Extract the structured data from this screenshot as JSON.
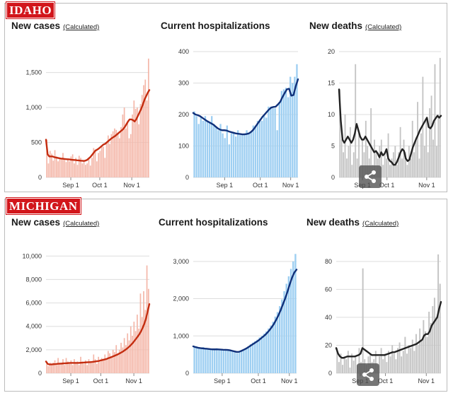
{
  "states": [
    {
      "name": "IDAHO",
      "charts": [
        {
          "title": "New cases",
          "note": "(Calculated)"
        },
        {
          "title": "Current hospitalizations",
          "note": ""
        },
        {
          "title": "New deaths",
          "note": "(Calculated)"
        }
      ]
    },
    {
      "name": "MICHIGAN",
      "charts": [
        {
          "title": "New cases",
          "note": "(Calculated)"
        },
        {
          "title": "Current hospitalizations",
          "note": ""
        },
        {
          "title": "New deaths",
          "note": "(Calculated)"
        }
      ]
    }
  ],
  "chart_data": [
    {
      "id": "idaho-cases",
      "type": "bar",
      "title": "New cases",
      "state": "Idaho",
      "bar_color": "#f4b8aa",
      "line_color": "#c42d10",
      "yticks": [
        0,
        500,
        1000,
        1500
      ],
      "ytick_labels": [
        "0",
        "500",
        "1,000",
        "1,500"
      ],
      "ylim": [
        0,
        1800
      ],
      "xticks": [
        "Sep 1",
        "Oct 1",
        "Nov 1"
      ],
      "bars": [
        540,
        200,
        380,
        340,
        240,
        390,
        300,
        230,
        260,
        280,
        350,
        260,
        220,
        270,
        230,
        300,
        330,
        200,
        280,
        180,
        310,
        280,
        200,
        240,
        180,
        200,
        260,
        170,
        280,
        420,
        400,
        230,
        350,
        380,
        450,
        440,
        280,
        500,
        600,
        480,
        620,
        660,
        700,
        680,
        640,
        560,
        720,
        900,
        1000,
        700,
        780,
        560,
        620,
        900,
        1100,
        980,
        1000,
        760,
        1050,
        1180,
        1320,
        1400,
        1100,
        1700
      ],
      "avg": [
        540,
        330,
        300,
        300,
        300,
        290,
        285,
        280,
        275,
        270,
        268,
        265,
        262,
        260,
        258,
        255,
        252,
        250,
        248,
        245,
        243,
        240,
        238,
        236,
        240,
        250,
        270,
        290,
        320,
        350,
        380,
        395,
        410,
        430,
        450,
        470,
        480,
        500,
        520,
        540,
        560,
        575,
        590,
        610,
        630,
        650,
        670,
        690,
        720,
        760,
        800,
        830,
        830,
        820,
        800,
        830,
        880,
        930,
        980,
        1040,
        1110,
        1160,
        1210,
        1250
      ]
    },
    {
      "id": "idaho-hosp",
      "type": "bar",
      "title": "Current hospitalizations",
      "state": "Idaho",
      "bar_color": "#9ecff2",
      "line_color": "#10307a",
      "yticks": [
        0,
        100,
        200,
        300,
        400
      ],
      "ytick_labels": [
        "0",
        "100",
        "200",
        "300",
        "400"
      ],
      "ylim": [
        0,
        400
      ],
      "xticks": [
        "Sep 1",
        "Oct 1",
        "Nov 1"
      ],
      "bars": [
        210,
        195,
        170,
        195,
        180,
        195,
        180,
        175,
        195,
        170,
        160,
        150,
        170,
        140,
        125,
        165,
        105,
        140,
        145,
        130,
        150,
        135,
        135,
        140,
        150,
        140,
        145,
        165,
        165,
        180,
        185,
        180,
        200,
        190,
        225,
        225,
        220,
        220,
        150,
        240,
        275,
        280,
        285,
        255,
        320,
        300,
        320,
        360
      ],
      "avg": [
        205,
        200,
        198,
        195,
        190,
        185,
        180,
        176,
        172,
        168,
        162,
        156,
        152,
        150,
        150,
        149,
        146,
        144,
        142,
        140,
        139,
        138,
        137,
        137,
        138,
        140,
        145,
        152,
        162,
        172,
        182,
        192,
        200,
        208,
        216,
        222,
        224,
        225,
        232,
        240,
        255,
        268,
        280,
        282,
        260,
        262,
        290,
        312
      ]
    },
    {
      "id": "idaho-deaths",
      "type": "bar",
      "title": "New deaths",
      "state": "Idaho",
      "bar_color": "#c4c4c4",
      "line_color": "#222222",
      "yticks": [
        0,
        5,
        10,
        15,
        20
      ],
      "ytick_labels": [
        "0",
        "5",
        "10",
        "15",
        "20"
      ],
      "ylim": [
        0,
        20
      ],
      "xticks": [
        "Sep 1",
        "Oct 1",
        "Nov 1"
      ],
      "bars": [
        14,
        6,
        4,
        10,
        3,
        5,
        8,
        2,
        4,
        18,
        3,
        7,
        2,
        6,
        4,
        9,
        5,
        3,
        11,
        2,
        6,
        4,
        3,
        5,
        6,
        2,
        4,
        3,
        7,
        2,
        3,
        4,
        5,
        2,
        4,
        8,
        3,
        6,
        4,
        2,
        5,
        3,
        9,
        4,
        6,
        12,
        3,
        7,
        16,
        5,
        9,
        4,
        11,
        13,
        6,
        18,
        5,
        10,
        19
      ],
      "avg": [
        14,
        9,
        6,
        5.5,
        6,
        6.5,
        6,
        5.5,
        6,
        7,
        8.5,
        7.5,
        6.5,
        6,
        6,
        6.5,
        6,
        5.5,
        5,
        4.5,
        4,
        4.2,
        3.8,
        3.2,
        4,
        3.5,
        3.8,
        4.5,
        3,
        2.6,
        2.4,
        2,
        2,
        2.5,
        3.2,
        4,
        4.5,
        4.2,
        3,
        2.6,
        2.8,
        3.8,
        4.8,
        5.5,
        6.2,
        6.8,
        7.5,
        8,
        8.5,
        9,
        9.5,
        8,
        7.8,
        8.2,
        9,
        9.4,
        9.8,
        9.5,
        9.8
      ]
    },
    {
      "id": "michigan-cases",
      "type": "bar",
      "title": "New cases",
      "state": "Michigan",
      "bar_color": "#f4b8aa",
      "line_color": "#c42d10",
      "yticks": [
        0,
        2000,
        4000,
        6000,
        8000,
        10000
      ],
      "ytick_labels": [
        "0",
        "2,000",
        "4,000",
        "6,000",
        "8,000",
        "10,000"
      ],
      "ylim": [
        0,
        10500
      ],
      "xticks": [
        "Sep 1",
        "Oct 1",
        "Nov 1"
      ],
      "bars": [
        1000,
        600,
        900,
        700,
        900,
        1100,
        700,
        1300,
        900,
        800,
        1200,
        700,
        1300,
        1000,
        800,
        1100,
        700,
        1200,
        900,
        1000,
        700,
        1400,
        1000,
        800,
        1100,
        700,
        1200,
        1000,
        900,
        1600,
        1200,
        800,
        1400,
        1000,
        1300,
        1200,
        1600,
        1200,
        1900,
        1700,
        1400,
        2000,
        1800,
        2400,
        1600,
        2000,
        2600,
        2200,
        3000,
        2400,
        3400,
        2800,
        4000,
        3200,
        4400,
        3600,
        5000,
        3800,
        6800,
        4800,
        7000,
        5400,
        9200,
        7200
      ],
      "avg": [
        1000,
        800,
        750,
        750,
        760,
        770,
        780,
        800,
        810,
        820,
        830,
        840,
        850,
        860,
        870,
        880,
        880,
        880,
        880,
        880,
        880,
        890,
        900,
        910,
        920,
        930,
        940,
        950,
        960,
        980,
        1000,
        1020,
        1040,
        1080,
        1110,
        1150,
        1180,
        1220,
        1280,
        1330,
        1390,
        1440,
        1500,
        1560,
        1630,
        1700,
        1780,
        1860,
        1960,
        2060,
        2180,
        2300,
        2450,
        2600,
        2780,
        2960,
        3150,
        3350,
        3600,
        3900,
        4250,
        4700,
        5300,
        5900
      ]
    },
    {
      "id": "michigan-hosp",
      "type": "bar",
      "title": "Current hospitalizations",
      "state": "Michigan",
      "bar_color": "#9ecff2",
      "line_color": "#10307a",
      "yticks": [
        0,
        1000,
        2000,
        3000
      ],
      "ytick_labels": [
        "0",
        "1,000",
        "2,000",
        "3,000"
      ],
      "ylim": [
        0,
        3300
      ],
      "xticks": [
        "Sep 1",
        "Oct 1",
        "Nov 1"
      ],
      "bars": [
        730,
        720,
        700,
        690,
        700,
        680,
        670,
        660,
        650,
        660,
        670,
        650,
        640,
        630,
        650,
        640,
        620,
        600,
        560,
        540,
        560,
        600,
        640,
        680,
        720,
        780,
        820,
        860,
        900,
        960,
        1000,
        1060,
        1120,
        1200,
        1280,
        1380,
        1520,
        1640,
        1800,
        1980,
        2200,
        2400,
        2600,
        2800,
        3000,
        3200
      ],
      "avg": [
        720,
        700,
        685,
        675,
        668,
        660,
        655,
        648,
        642,
        640,
        640,
        638,
        635,
        630,
        628,
        625,
        615,
        600,
        585,
        570,
        575,
        600,
        630,
        660,
        700,
        740,
        780,
        820,
        860,
        910,
        960,
        1010,
        1070,
        1140,
        1220,
        1310,
        1420,
        1540,
        1680,
        1840,
        2000,
        2180,
        2380,
        2560,
        2700,
        2780
      ]
    },
    {
      "id": "michigan-deaths",
      "type": "bar",
      "title": "New deaths",
      "state": "Michigan",
      "bar_color": "#c4c4c4",
      "line_color": "#222222",
      "yticks": [
        0,
        20,
        40,
        60,
        80
      ],
      "ytick_labels": [
        "0",
        "20",
        "40",
        "60",
        "80"
      ],
      "ylim": [
        0,
        88
      ],
      "xticks": [
        "Sep 1",
        "Oct 1",
        "Nov 1"
      ],
      "bars": [
        18,
        8,
        14,
        6,
        12,
        10,
        16,
        4,
        14,
        9,
        12,
        6,
        18,
        8,
        75,
        10,
        6,
        12,
        14,
        8,
        10,
        16,
        6,
        12,
        18,
        10,
        14,
        8,
        16,
        12,
        20,
        14,
        10,
        18,
        22,
        12,
        16,
        26,
        14,
        20,
        18,
        24,
        16,
        28,
        20,
        32,
        24,
        38,
        30,
        26,
        44,
        36,
        48,
        54,
        40,
        85,
        64
      ],
      "avg": [
        18,
        14,
        12,
        11,
        11,
        11.5,
        12,
        12,
        12,
        12,
        12,
        12.5,
        13,
        14,
        18,
        17,
        16,
        15,
        14,
        13,
        13,
        13,
        13,
        13,
        13,
        13,
        13,
        13.5,
        14,
        14.5,
        15,
        15,
        15.5,
        16,
        16.5,
        17,
        17.5,
        18,
        18.5,
        19,
        19.5,
        20,
        20.5,
        21,
        22,
        23,
        24,
        27,
        28,
        28,
        30,
        34,
        36,
        38,
        40,
        46,
        51
      ]
    }
  ]
}
